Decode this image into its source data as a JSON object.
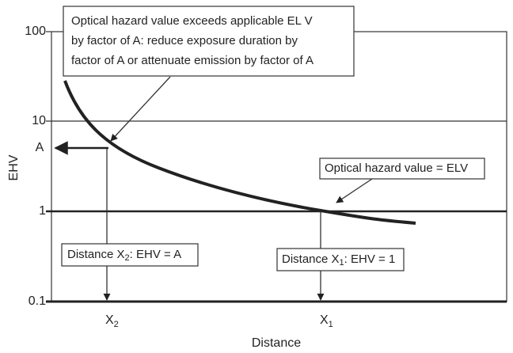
{
  "axes": {
    "y_label": "EHV",
    "x_label": "Distance",
    "y_ticks": [
      "100",
      "10",
      "1",
      "0.1"
    ],
    "a_label": "A",
    "x_marks": [
      {
        "letter": "X",
        "sub": "2"
      },
      {
        "letter": "X",
        "sub": "1"
      }
    ]
  },
  "annotations": {
    "exceeds": [
      "Optical hazard value exceeds applicable EL V",
      "by factor of A: reduce exposure duration by",
      "factor of A or attenuate emission by factor of A"
    ],
    "equal": "Optical hazard value = ELV",
    "distance_x2": [
      "Distance X",
      "2",
      ": EHV = A"
    ],
    "distance_x1": [
      "Distance X",
      "1",
      ": EHV = 1"
    ]
  }
}
